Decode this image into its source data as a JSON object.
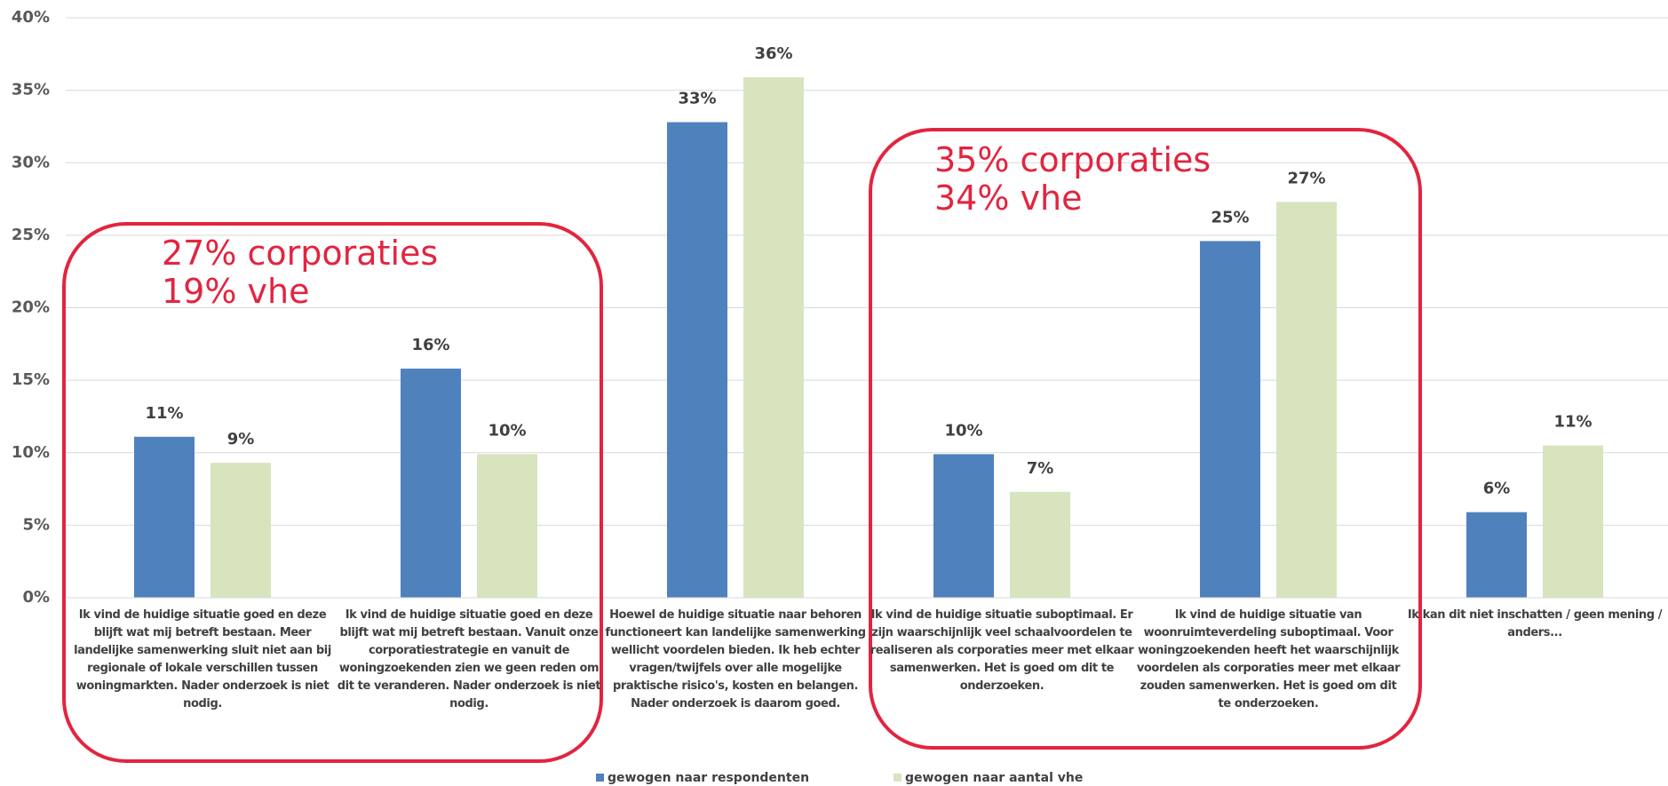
{
  "chart_data": {
    "type": "bar",
    "categories": [
      "Ik vind de huidige situatie goed en deze blijft wat mij betreft bestaan. Meer landelijke samenwerking sluit niet aan bij regionale of lokale verschillen tussen woningmarkten. Nader onderzoek is niet nodig.",
      "Ik vind de huidige situatie goed en deze blijft wat mij betreft bestaan. Vanuit onze corporatiestrategie en vanuit de woningzoekenden zien we geen reden om dit te veranderen. Nader onderzoek is niet nodig.",
      "Hoewel de huidige situatie naar behoren functioneert kan landelijke samenwerking wellicht voordelen bieden. Ik heb echter vragen/twijfels over alle mogelijke praktische risico's, kosten en belangen. Nader onderzoek is daarom goed.",
      "Ik vind de huidige situatie suboptimaal. Er zijn waarschijnlijk veel schaalvoordelen te realiseren als corporaties meer met elkaar samenwerken. Het is goed om dit te onderzoeken.",
      "Ik vind de huidige situatie van woonruimteverdeling suboptimaal. Voor woningzoekenden heeft het waarschijnlijk voordelen als corporaties meer met elkaar zouden samenwerken. Het is goed om dit te onderzoeken.",
      "Ik kan dit niet inschatten / geen mening / anders..."
    ],
    "series": [
      {
        "name": "gewogen naar respondenten",
        "color": "#4f81bd",
        "values": [
          11.1,
          15.8,
          32.8,
          9.9,
          24.6,
          5.9
        ],
        "value_labels": [
          "11%",
          "16%",
          "33%",
          "10%",
          "25%",
          "6%"
        ]
      },
      {
        "name": "gewogen naar aantal vhe",
        "color": "#d7e4bd",
        "values": [
          9.3,
          9.9,
          35.9,
          7.3,
          27.3,
          10.5
        ],
        "value_labels": [
          "9%",
          "10%",
          "36%",
          "7%",
          "27%",
          "11%"
        ]
      }
    ],
    "ylim": [
      0,
      40
    ],
    "yticks": [
      {
        "value": 0,
        "label": "0%"
      },
      {
        "value": 5,
        "label": "5%"
      },
      {
        "value": 10,
        "label": "10%"
      },
      {
        "value": 15,
        "label": "15%"
      },
      {
        "value": 20,
        "label": "20%"
      },
      {
        "value": 25,
        "label": "25%"
      },
      {
        "value": 30,
        "label": "30%"
      },
      {
        "value": 35,
        "label": "35%"
      },
      {
        "value": 40,
        "label": "40%"
      }
    ],
    "grid": true,
    "annotations": [
      {
        "lines": [
          "27% corporaties",
          "19% vhe"
        ],
        "color": "#e3243f"
      },
      {
        "lines": [
          "35% corporaties",
          "34% vhe"
        ],
        "color": "#e3243f"
      }
    ]
  }
}
